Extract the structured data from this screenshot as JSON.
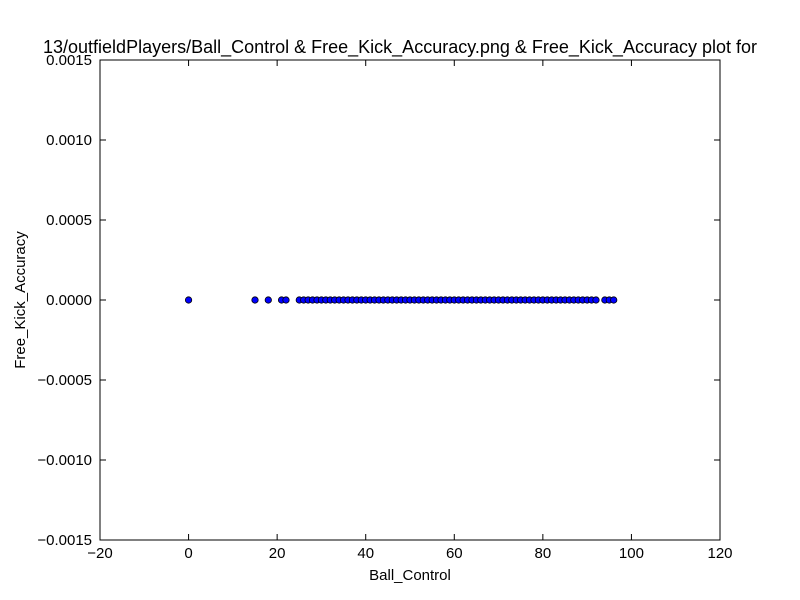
{
  "chart_data": {
    "type": "scatter",
    "title": "13/outfieldPlayers/Ball_Control & Free_Kick_Accuracy.png & Free_Kick_Accuracy plot for",
    "xlabel": "Ball_Control",
    "ylabel": "Free_Kick_Accuracy",
    "xlim": [
      -20,
      120
    ],
    "ylim": [
      -0.0015,
      0.0015
    ],
    "xticks": [
      -20,
      0,
      20,
      40,
      60,
      80,
      100,
      120
    ],
    "yticks": [
      -0.0015,
      -0.001,
      -0.0005,
      0,
      0.0005,
      0.001,
      0.0015
    ],
    "xtick_labels": [
      "−20",
      "0",
      "20",
      "40",
      "60",
      "80",
      "100",
      "120"
    ],
    "ytick_labels": [
      "−0.0015",
      "−0.0010",
      "−0.0005",
      "0.0000",
      "0.0005",
      "0.0010",
      "0.0015"
    ],
    "grid": false,
    "marker_color": "#0000ff",
    "points": [
      [
        0,
        0
      ],
      [
        15,
        0
      ],
      [
        18,
        0
      ],
      [
        21,
        0
      ],
      [
        22,
        0
      ],
      [
        25,
        0
      ],
      [
        26,
        0
      ],
      [
        27,
        0
      ],
      [
        28,
        0
      ],
      [
        29,
        0
      ],
      [
        30,
        0
      ],
      [
        31,
        0
      ],
      [
        32,
        0
      ],
      [
        33,
        0
      ],
      [
        34,
        0
      ],
      [
        35,
        0
      ],
      [
        36,
        0
      ],
      [
        37,
        0
      ],
      [
        38,
        0
      ],
      [
        39,
        0
      ],
      [
        40,
        0
      ],
      [
        41,
        0
      ],
      [
        42,
        0
      ],
      [
        43,
        0
      ],
      [
        44,
        0
      ],
      [
        45,
        0
      ],
      [
        46,
        0
      ],
      [
        47,
        0
      ],
      [
        48,
        0
      ],
      [
        49,
        0
      ],
      [
        50,
        0
      ],
      [
        51,
        0
      ],
      [
        52,
        0
      ],
      [
        53,
        0
      ],
      [
        54,
        0
      ],
      [
        55,
        0
      ],
      [
        56,
        0
      ],
      [
        57,
        0
      ],
      [
        58,
        0
      ],
      [
        59,
        0
      ],
      [
        60,
        0
      ],
      [
        61,
        0
      ],
      [
        62,
        0
      ],
      [
        63,
        0
      ],
      [
        64,
        0
      ],
      [
        65,
        0
      ],
      [
        66,
        0
      ],
      [
        67,
        0
      ],
      [
        68,
        0
      ],
      [
        69,
        0
      ],
      [
        70,
        0
      ],
      [
        71,
        0
      ],
      [
        72,
        0
      ],
      [
        73,
        0
      ],
      [
        74,
        0
      ],
      [
        75,
        0
      ],
      [
        76,
        0
      ],
      [
        77,
        0
      ],
      [
        78,
        0
      ],
      [
        79,
        0
      ],
      [
        80,
        0
      ],
      [
        81,
        0
      ],
      [
        82,
        0
      ],
      [
        83,
        0
      ],
      [
        84,
        0
      ],
      [
        85,
        0
      ],
      [
        86,
        0
      ],
      [
        87,
        0
      ],
      [
        88,
        0
      ],
      [
        89,
        0
      ],
      [
        90,
        0
      ],
      [
        91,
        0
      ],
      [
        92,
        0
      ],
      [
        94,
        0
      ],
      [
        95,
        0
      ],
      [
        96,
        0
      ]
    ]
  }
}
